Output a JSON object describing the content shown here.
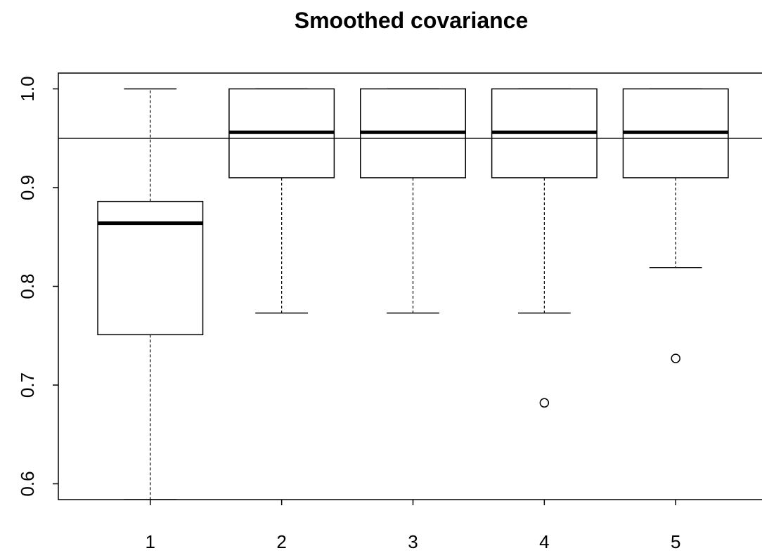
{
  "chart_data": {
    "type": "boxplot",
    "title": "Smoothed covariance",
    "categories": [
      "1",
      "2",
      "3",
      "4",
      "5"
    ],
    "boxes": [
      {
        "min": 0.584,
        "q1": 0.751,
        "median": 0.864,
        "q3": 0.886,
        "max": 1.0,
        "outliers": []
      },
      {
        "min": 0.773,
        "q1": 0.91,
        "median": 0.956,
        "q3": 1.0,
        "max": 1.0,
        "outliers": []
      },
      {
        "min": 0.773,
        "q1": 0.91,
        "median": 0.956,
        "q3": 1.0,
        "max": 1.0,
        "outliers": []
      },
      {
        "min": 0.773,
        "q1": 0.91,
        "median": 0.956,
        "q3": 1.0,
        "max": 1.0,
        "outliers": [
          0.682
        ]
      },
      {
        "min": 0.819,
        "q1": 0.91,
        "median": 0.956,
        "q3": 1.0,
        "max": 1.0,
        "outliers": [
          0.727
        ]
      }
    ],
    "hline": 0.95,
    "xlim": [
      0.3,
      5.7
    ],
    "ylim": [
      0.584,
      1.016
    ],
    "yticks": [
      {
        "value": 0.6,
        "label": "0.6"
      },
      {
        "value": 0.7,
        "label": "0.7"
      },
      {
        "value": 0.8,
        "label": "0.8"
      },
      {
        "value": 0.9,
        "label": "0.9"
      },
      {
        "value": 1.0,
        "label": "1.0"
      }
    ],
    "color": "#ffffff"
  }
}
